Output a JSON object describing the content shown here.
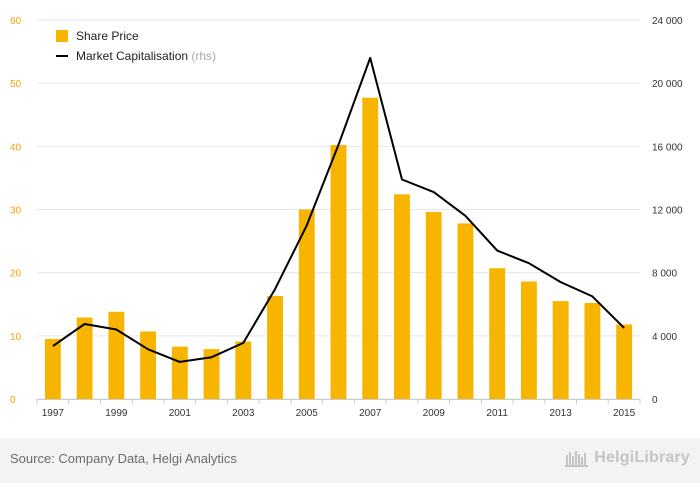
{
  "chart_data": {
    "type": "bar",
    "x": [
      1997,
      1998,
      1999,
      2000,
      2001,
      2002,
      2003,
      2004,
      2005,
      2006,
      2007,
      2008,
      2009,
      2010,
      2011,
      2012,
      2013,
      2014,
      2015
    ],
    "x_tick_labels": [
      "1997",
      "1999",
      "2001",
      "2003",
      "2005",
      "2007",
      "2009",
      "2011",
      "2013",
      "2015"
    ],
    "series": [
      {
        "name": "Share Price",
        "type": "bar",
        "axis": "left",
        "color": "#f7b500",
        "values": [
          9.5,
          12.9,
          13.8,
          10.7,
          8.3,
          7.9,
          9.1,
          16.3,
          30.0,
          40.2,
          47.7,
          32.4,
          29.6,
          27.8,
          20.7,
          18.6,
          15.5,
          15.2,
          11.8
        ]
      },
      {
        "name": "Market Capitalisation",
        "name_suffix": "(rhs)",
        "type": "line",
        "axis": "right",
        "color": "#000000",
        "values": [
          3350,
          4750,
          4400,
          3150,
          2350,
          2650,
          3550,
          6950,
          11000,
          16100,
          21600,
          13900,
          13100,
          11600,
          9400,
          8600,
          7400,
          6500,
          4500
        ]
      }
    ],
    "y_left": {
      "ylim": [
        0,
        60
      ],
      "ticks": [
        "0",
        "10",
        "20",
        "30",
        "40",
        "50",
        "60"
      ],
      "tick_color": "#f0a500"
    },
    "y_right": {
      "ylim": [
        0,
        24000
      ],
      "ticks": [
        "0",
        "4 000",
        "8 000",
        "12 000",
        "16 000",
        "20 000",
        "24 000"
      ]
    },
    "grid": true,
    "legend_position": "top-left"
  },
  "footer": {
    "source": "Source: Company Data, Helgi Analytics",
    "brand": "HelgiLibrary"
  }
}
